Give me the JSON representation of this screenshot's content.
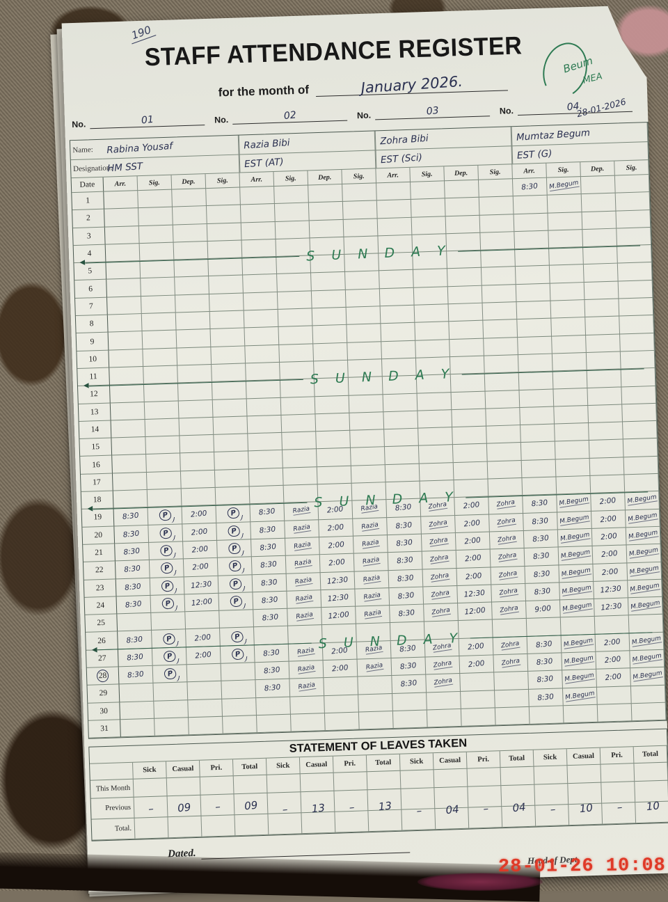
{
  "page_label": "190",
  "header": {
    "title": "STAFF ATTENDANCE REGISTER",
    "month_prefix": "for the month of",
    "month_value": "January 2026.",
    "corner_sign_text": "Beum",
    "corner_sign_suffix": "MEA",
    "corner_date_note": "28-01-2026"
  },
  "no_label": "No.",
  "staff": [
    {
      "no": "01",
      "name": "Rabina Yousaf",
      "designation": "HM SST"
    },
    {
      "no": "02",
      "name": "Razia Bibi",
      "designation": "EST (AT)"
    },
    {
      "no": "03",
      "name": "Zohra Bibi",
      "designation": "EST (Sci)"
    },
    {
      "no": "04.",
      "name": "Mumtaz Begum",
      "designation": "EST (G)"
    }
  ],
  "table": {
    "name_label": "Name:",
    "designation_label": "Designation:",
    "date_header": "Date",
    "sub_headers": [
      "Arr.",
      "Sig.",
      "Dep.",
      "Sig."
    ],
    "days": 31,
    "circled_day": 28,
    "sunday_label": "S U N D A Y",
    "sunday_rows": [
      4,
      11,
      18,
      26
    ]
  },
  "attendance": {
    "1": [
      "",
      "",
      "",
      "",
      "",
      "",
      "",
      "",
      "",
      "",
      "",
      "",
      "8:30",
      "M.Begum",
      "",
      ""
    ],
    "19": [
      "8:30",
      "P",
      "2:00",
      "P",
      "8:30",
      "Razia",
      "2:00",
      "Razia",
      "8:30",
      "Zohra",
      "2:00",
      "Zohra",
      "8:30",
      "M.Begum",
      "2:00",
      "M.Begum"
    ],
    "20": [
      "8:30",
      "P",
      "2:00",
      "P",
      "8:30",
      "Razia",
      "2:00",
      "Razia",
      "8:30",
      "Zohra",
      "2:00",
      "Zohra",
      "8:30",
      "M.Begum",
      "2:00",
      "M.Begum"
    ],
    "21": [
      "8:30",
      "P",
      "2:00",
      "P",
      "8:30",
      "Razia",
      "2:00",
      "Razia",
      "8:30",
      "Zohra",
      "2:00",
      "Zohra",
      "8:30",
      "M.Begum",
      "2:00",
      "M.Begum"
    ],
    "22": [
      "8:30",
      "P",
      "2:00",
      "P",
      "8:30",
      "Razia",
      "2:00",
      "Razia",
      "8:30",
      "Zohra",
      "2:00",
      "Zohra",
      "8:30",
      "M.Begum",
      "2:00",
      "M.Begum"
    ],
    "23": [
      "8:30",
      "P",
      "12:30",
      "P",
      "8:30",
      "Razia",
      "12:30",
      "Razia",
      "8:30",
      "Zohra",
      "2:00",
      "Zohra",
      "8:30",
      "M.Begum",
      "2:00",
      "M.Begum"
    ],
    "24": [
      "8:30",
      "P",
      "12:00",
      "P",
      "8:30",
      "Razia",
      "12:30",
      "Razia",
      "8:30",
      "Zohra",
      "12:30",
      "Zohra",
      "8:30",
      "M.Begum",
      "12:30",
      "M.Begum"
    ],
    "25": [
      "",
      "",
      "",
      "",
      "8:30",
      "Razia",
      "12:00",
      "Razia",
      "8:30",
      "Zohra",
      "12:00",
      "Zohra",
      "9:00",
      "M.Begum",
      "12:30",
      "M.Begum"
    ],
    "26": [
      "8:30",
      "P",
      "2:00",
      "P",
      "",
      "",
      "",
      "",
      "",
      "",
      "",
      "",
      "",
      "",
      "",
      ""
    ],
    "27": [
      "8:30",
      "P",
      "2:00",
      "P",
      "8:30",
      "Razia",
      "2:00",
      "Razia",
      "8:30",
      "Zohra",
      "2:00",
      "Zohra",
      "8:30",
      "M.Begum",
      "2:00",
      "M.Begum"
    ],
    "28": [
      "8:30",
      "P",
      "",
      "",
      "8:30",
      "Razia",
      "2:00",
      "Razia",
      "8:30",
      "Zohra",
      "2:00",
      "Zohra",
      "8:30",
      "M.Begum",
      "2:00",
      "M.Begum"
    ],
    "29": [
      "",
      "",
      "",
      "",
      "8:30",
      "Razia",
      "",
      "",
      "8:30",
      "Zohra",
      "",
      "",
      "8:30",
      "M.Begum",
      "2:00",
      "M.Begum"
    ],
    "30": [
      "",
      "",
      "",
      "",
      "",
      "",
      "",
      "",
      "",
      "",
      "",
      "",
      "8:30",
      "M.Begum",
      "",
      ""
    ]
  },
  "leaves": {
    "title": "STATEMENT OF LEAVES TAKEN",
    "row_labels": [
      "This Month",
      "Previous",
      "Total."
    ],
    "col_headers": [
      "Sick",
      "Casual",
      "Pri.",
      "Total"
    ],
    "previous_values": [
      [
        "–",
        "09",
        "–",
        "09"
      ],
      [
        "–",
        "13",
        "–",
        "13"
      ],
      [
        "–",
        "04",
        "–",
        "04"
      ],
      [
        "–",
        "10",
        "–",
        "10"
      ]
    ]
  },
  "footer": {
    "dated_label": "Dated.",
    "head_label": "Head of Dept."
  },
  "photo": {
    "timestamp": "28-01-26 10:08"
  }
}
